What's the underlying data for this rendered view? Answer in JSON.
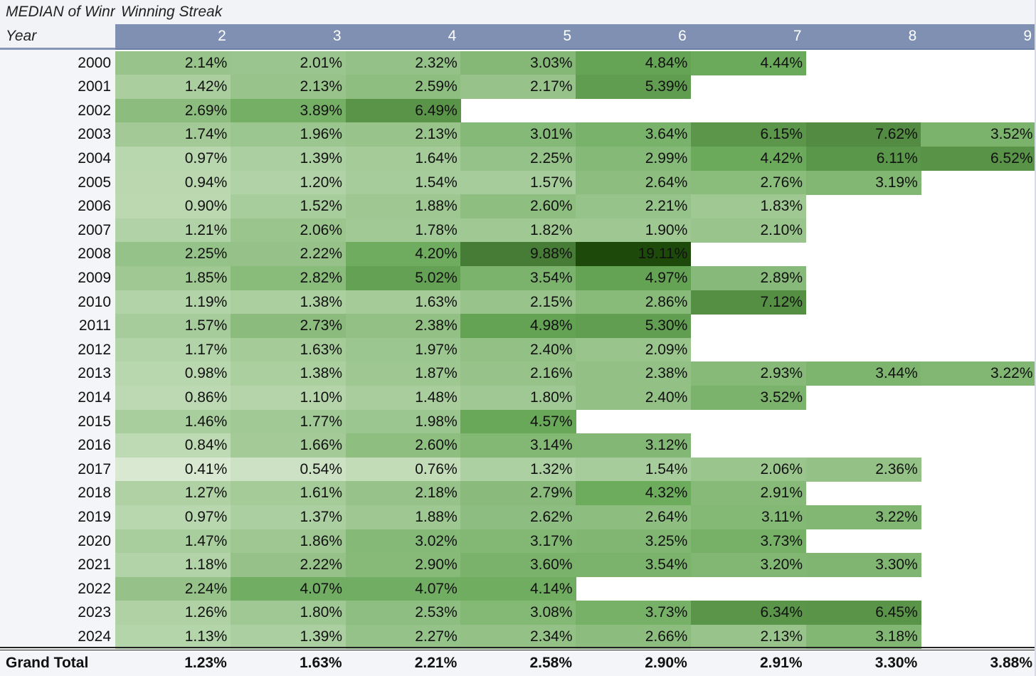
{
  "pivot": {
    "values_field_label": "MEDIAN of Winr",
    "column_field_label": "Winning Streak",
    "row_field_label": "Year",
    "grand_total_label": "Grand Total"
  },
  "columns": [
    "2",
    "3",
    "4",
    "5",
    "6",
    "7",
    "8",
    "9"
  ],
  "rows": [
    {
      "year": "2000",
      "cells": [
        "2.14%",
        "2.01%",
        "2.32%",
        "3.03%",
        "4.84%",
        "4.44%",
        "",
        ""
      ]
    },
    {
      "year": "2001",
      "cells": [
        "1.42%",
        "2.13%",
        "2.59%",
        "2.17%",
        "5.39%",
        "",
        "",
        ""
      ]
    },
    {
      "year": "2002",
      "cells": [
        "2.69%",
        "3.89%",
        "6.49%",
        "",
        "",
        "",
        "",
        ""
      ]
    },
    {
      "year": "2003",
      "cells": [
        "1.74%",
        "1.96%",
        "2.13%",
        "3.01%",
        "3.64%",
        "6.15%",
        "7.62%",
        "3.52%"
      ]
    },
    {
      "year": "2004",
      "cells": [
        "0.97%",
        "1.39%",
        "1.64%",
        "2.25%",
        "2.99%",
        "4.42%",
        "6.11%",
        "6.52%"
      ]
    },
    {
      "year": "2005",
      "cells": [
        "0.94%",
        "1.20%",
        "1.54%",
        "1.57%",
        "2.64%",
        "2.76%",
        "3.19%",
        ""
      ]
    },
    {
      "year": "2006",
      "cells": [
        "0.90%",
        "1.52%",
        "1.88%",
        "2.60%",
        "2.21%",
        "1.83%",
        "",
        ""
      ]
    },
    {
      "year": "2007",
      "cells": [
        "1.21%",
        "2.06%",
        "1.78%",
        "1.82%",
        "1.90%",
        "2.10%",
        "",
        ""
      ]
    },
    {
      "year": "2008",
      "cells": [
        "2.25%",
        "2.22%",
        "4.20%",
        "9.88%",
        "19.11%",
        "",
        "",
        ""
      ]
    },
    {
      "year": "2009",
      "cells": [
        "1.85%",
        "2.82%",
        "5.02%",
        "3.54%",
        "4.97%",
        "2.89%",
        "",
        ""
      ]
    },
    {
      "year": "2010",
      "cells": [
        "1.19%",
        "1.38%",
        "1.63%",
        "2.15%",
        "2.86%",
        "7.12%",
        "",
        ""
      ]
    },
    {
      "year": "2011",
      "cells": [
        "1.57%",
        "2.73%",
        "2.38%",
        "4.98%",
        "5.30%",
        "",
        "",
        ""
      ]
    },
    {
      "year": "2012",
      "cells": [
        "1.17%",
        "1.63%",
        "1.97%",
        "2.40%",
        "2.09%",
        "",
        "",
        ""
      ]
    },
    {
      "year": "2013",
      "cells": [
        "0.98%",
        "1.38%",
        "1.87%",
        "2.16%",
        "2.38%",
        "2.93%",
        "3.44%",
        "3.22%"
      ]
    },
    {
      "year": "2014",
      "cells": [
        "0.86%",
        "1.10%",
        "1.48%",
        "1.80%",
        "2.40%",
        "3.52%",
        "",
        ""
      ]
    },
    {
      "year": "2015",
      "cells": [
        "1.46%",
        "1.77%",
        "1.98%",
        "4.57%",
        "",
        "",
        "",
        ""
      ]
    },
    {
      "year": "2016",
      "cells": [
        "0.84%",
        "1.66%",
        "2.60%",
        "3.14%",
        "3.12%",
        "",
        "",
        ""
      ]
    },
    {
      "year": "2017",
      "cells": [
        "0.41%",
        "0.54%",
        "0.76%",
        "1.32%",
        "1.54%",
        "2.06%",
        "2.36%",
        ""
      ]
    },
    {
      "year": "2018",
      "cells": [
        "1.27%",
        "1.61%",
        "2.18%",
        "2.79%",
        "4.32%",
        "2.91%",
        "",
        ""
      ]
    },
    {
      "year": "2019",
      "cells": [
        "0.97%",
        "1.37%",
        "1.88%",
        "2.62%",
        "2.64%",
        "3.11%",
        "3.22%",
        ""
      ]
    },
    {
      "year": "2020",
      "cells": [
        "1.47%",
        "1.86%",
        "3.02%",
        "3.17%",
        "3.25%",
        "3.73%",
        "",
        ""
      ]
    },
    {
      "year": "2021",
      "cells": [
        "1.18%",
        "2.22%",
        "2.90%",
        "3.60%",
        "3.54%",
        "3.20%",
        "3.30%",
        ""
      ]
    },
    {
      "year": "2022",
      "cells": [
        "2.24%",
        "4.07%",
        "4.07%",
        "4.14%",
        "",
        "",
        "",
        ""
      ]
    },
    {
      "year": "2023",
      "cells": [
        "1.26%",
        "1.80%",
        "2.53%",
        "3.08%",
        "3.73%",
        "6.34%",
        "6.45%",
        ""
      ]
    },
    {
      "year": "2024",
      "cells": [
        "1.13%",
        "1.39%",
        "2.27%",
        "2.34%",
        "2.66%",
        "2.13%",
        "3.18%",
        ""
      ]
    }
  ],
  "grand_total": [
    "1.23%",
    "1.63%",
    "2.21%",
    "2.58%",
    "2.90%",
    "2.91%",
    "3.30%",
    "3.88%"
  ],
  "colors": {
    "header_band": "#7f90b3",
    "scale_low": "#dcebd4",
    "scale_mid": "#6aa95a",
    "scale_high": "#1d4a0b"
  }
}
